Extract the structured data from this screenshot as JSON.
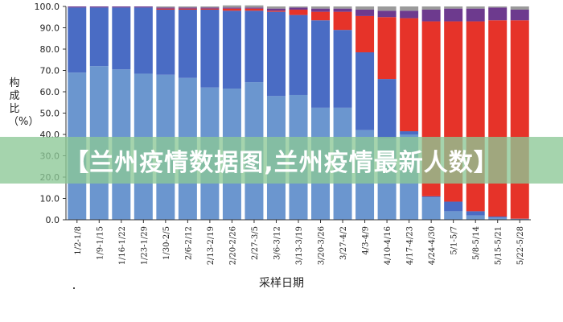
{
  "banner": {
    "text": "【兰州疫情数据图,兰州疫情最新人数】"
  },
  "chart_data": {
    "type": "bar",
    "stacked": true,
    "xlabel": "采样日期",
    "ylabel": "构成比（%）",
    "ylim": [
      0,
      100
    ],
    "yticks": [
      0,
      10,
      20,
      30,
      40,
      50,
      60,
      70,
      80,
      90,
      100
    ],
    "ytick_labels": [
      "0.0",
      "10.0",
      "20.0",
      "30.0",
      "40.0",
      "50.0",
      "60.0",
      "70.0",
      "80.0",
      "90.0",
      "100.0"
    ],
    "grid": false,
    "categories": [
      "1/2-1/8",
      "1/9-1/15",
      "1/16-1/22",
      "1/23-1/29",
      "1/30-2/5",
      "2/6-2/12",
      "2/13-2/19",
      "2/20-2/26",
      "2/27-3/5",
      "3/6-3/12",
      "3/13-3/19",
      "3/20-3/26",
      "3/27-4/2",
      "4/3-4/9",
      "4/10-4/16",
      "4/17-4/23",
      "4/24-4/30",
      "5/1-5/7",
      "5/8-5/14",
      "5/15-5/21",
      "5/22-5/28"
    ],
    "series": [
      {
        "color": "#6b96cf",
        "values": [
          69,
          72,
          70.5,
          68.5,
          68,
          66.5,
          62,
          61.5,
          64.5,
          58,
          58.5,
          52.5,
          52.5,
          42,
          38,
          40,
          10.5,
          4,
          2,
          1,
          0.5
        ]
      },
      {
        "color": "#4a6cc4",
        "values": [
          30.5,
          27.5,
          29,
          31,
          30.5,
          32,
          36.5,
          36.5,
          33.5,
          39.5,
          37.5,
          41,
          36.5,
          36.5,
          28,
          1.5,
          0.5,
          4.5,
          2,
          0.5,
          0
        ]
      },
      {
        "color": "#e63329",
        "values": [
          0,
          0,
          0,
          0,
          0.5,
          0.5,
          0.5,
          1,
          1,
          0.5,
          2.5,
          4,
          8.5,
          17,
          29,
          53,
          82,
          84.5,
          89,
          92,
          93
        ]
      },
      {
        "color": "#6d3a8e",
        "values": [
          0.5,
          0.5,
          0.5,
          0.5,
          0.5,
          0.5,
          0.5,
          0.5,
          0.5,
          1,
          1,
          1.5,
          1.5,
          3,
          3,
          3.5,
          5.5,
          6,
          6,
          6,
          5
        ]
      },
      {
        "color": "#9a9a9a",
        "values": [
          0,
          0,
          0,
          0,
          0.5,
          0.5,
          0.5,
          1,
          1,
          1,
          0.5,
          1,
          1,
          1.5,
          2,
          2,
          1.5,
          1,
          1,
          0.5,
          1.5
        ]
      }
    ]
  }
}
